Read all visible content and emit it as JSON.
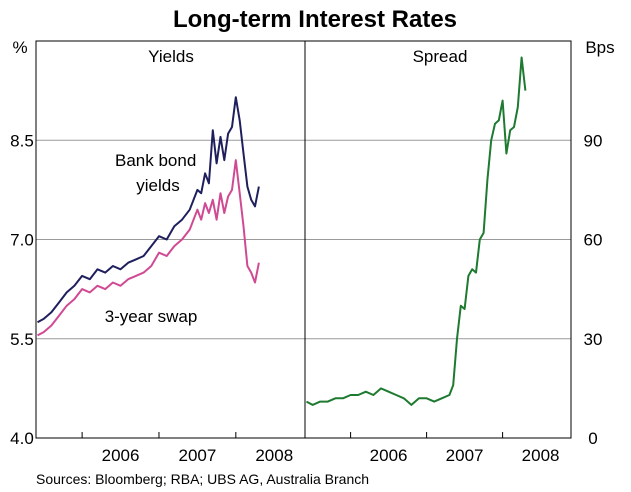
{
  "title": "Long-term Interest Rates",
  "source": "Sources: Bloomberg; RBA; UBS AG, Australia Branch",
  "colors": {
    "bank": "#1f1f5e",
    "swap": "#d04a93",
    "spread": "#1e7a30",
    "grid": "#9a9a9a"
  },
  "chart_data": [
    {
      "type": "line",
      "panel_title": "Yields",
      "ylabel": "%",
      "ylim": [
        4.0,
        10.0
      ],
      "y_ticks": [
        "4.0",
        "5.5",
        "7.0",
        "8.5"
      ],
      "x_ticks": [
        "2006",
        "2007",
        "2008"
      ],
      "x_range": [
        2005.4,
        2008.9
      ],
      "grid": true,
      "annotations": {
        "bank": "Bank bond yields",
        "bank_line1": "Bank bond",
        "bank_line2": "yields",
        "swap": "3-year swap"
      },
      "series": [
        {
          "key": "bank",
          "x": [
            2005.42,
            2005.5,
            2005.6,
            2005.7,
            2005.8,
            2005.9,
            2006.0,
            2006.1,
            2006.2,
            2006.3,
            2006.4,
            2006.5,
            2006.6,
            2006.7,
            2006.8,
            2006.9,
            2007.0,
            2007.1,
            2007.2,
            2007.3,
            2007.4,
            2007.5,
            2007.55,
            2007.6,
            2007.65,
            2007.7,
            2007.75,
            2007.8,
            2007.85,
            2007.9,
            2007.95,
            2008.0,
            2008.05,
            2008.1,
            2008.15,
            2008.2,
            2008.25,
            2008.3
          ],
          "y": [
            5.75,
            5.8,
            5.9,
            6.05,
            6.2,
            6.3,
            6.45,
            6.4,
            6.55,
            6.5,
            6.6,
            6.55,
            6.65,
            6.7,
            6.75,
            6.9,
            7.05,
            7.0,
            7.2,
            7.3,
            7.45,
            7.75,
            7.7,
            8.0,
            7.85,
            8.65,
            8.15,
            8.55,
            8.2,
            8.6,
            8.7,
            9.15,
            8.8,
            8.3,
            7.8,
            7.6,
            7.5,
            7.8
          ]
        },
        {
          "key": "swap",
          "x": [
            2005.42,
            2005.5,
            2005.6,
            2005.7,
            2005.8,
            2005.9,
            2006.0,
            2006.1,
            2006.2,
            2006.3,
            2006.4,
            2006.5,
            2006.6,
            2006.7,
            2006.8,
            2006.9,
            2007.0,
            2007.1,
            2007.2,
            2007.3,
            2007.4,
            2007.5,
            2007.55,
            2007.6,
            2007.65,
            2007.7,
            2007.75,
            2007.8,
            2007.85,
            2007.9,
            2007.95,
            2008.0,
            2008.05,
            2008.1,
            2008.15,
            2008.2,
            2008.25,
            2008.3
          ],
          "y": [
            5.55,
            5.6,
            5.7,
            5.85,
            6.0,
            6.1,
            6.25,
            6.2,
            6.3,
            6.25,
            6.35,
            6.3,
            6.4,
            6.45,
            6.5,
            6.6,
            6.8,
            6.75,
            6.9,
            7.0,
            7.15,
            7.45,
            7.3,
            7.55,
            7.4,
            7.6,
            7.3,
            7.7,
            7.4,
            7.65,
            7.75,
            8.2,
            7.7,
            7.2,
            6.6,
            6.5,
            6.35,
            6.65
          ]
        }
      ]
    },
    {
      "type": "line",
      "panel_title": "Spread",
      "ylabel": "Bps",
      "ylim": [
        0,
        120
      ],
      "y_ticks": [
        "0",
        "30",
        "60",
        "90"
      ],
      "x_ticks": [
        "2006",
        "2007",
        "2008"
      ],
      "x_range": [
        2005.4,
        2008.9
      ],
      "grid": true,
      "series": [
        {
          "key": "spread",
          "x": [
            2005.42,
            2005.5,
            2005.6,
            2005.7,
            2005.8,
            2005.9,
            2006.0,
            2006.1,
            2006.2,
            2006.3,
            2006.4,
            2006.5,
            2006.6,
            2006.7,
            2006.8,
            2006.9,
            2007.0,
            2007.1,
            2007.2,
            2007.3,
            2007.35,
            2007.4,
            2007.45,
            2007.5,
            2007.55,
            2007.6,
            2007.65,
            2007.7,
            2007.75,
            2007.8,
            2007.85,
            2007.9,
            2007.95,
            2008.0,
            2008.05,
            2008.1,
            2008.15,
            2008.2,
            2008.25,
            2008.3
          ],
          "y": [
            11,
            10,
            11,
            11,
            12,
            12,
            13,
            13,
            14,
            13,
            15,
            14,
            13,
            12,
            10,
            12,
            12,
            11,
            12,
            13,
            16,
            30,
            40,
            39,
            49,
            51,
            50,
            60,
            62,
            78,
            90,
            95,
            96,
            102,
            86,
            93,
            94,
            100,
            115,
            105
          ]
        }
      ]
    }
  ]
}
